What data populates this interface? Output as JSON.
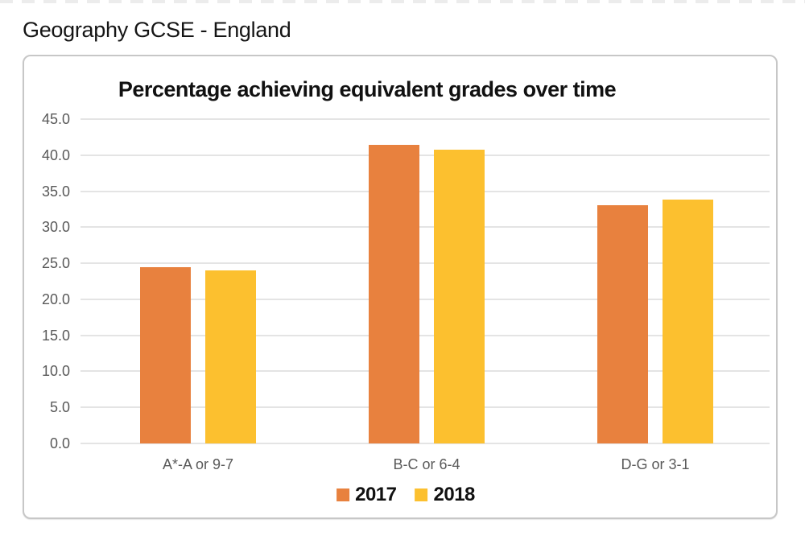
{
  "page": {
    "title": "Geography GCSE - England"
  },
  "chart_data": {
    "type": "bar",
    "title": "Percentage achieving equivalent grades over time",
    "categories": [
      "A*-A or 9-7",
      "B-C or 6-4",
      "D-G or 3-1"
    ],
    "series": [
      {
        "name": "2017",
        "color": "#E8813E",
        "values": [
          24.4,
          41.4,
          33.0
        ]
      },
      {
        "name": "2018",
        "color": "#FCC02F",
        "values": [
          24.0,
          40.8,
          33.8
        ]
      }
    ],
    "xlabel": "",
    "ylabel": "",
    "ylim": [
      0,
      45
    ],
    "ytick_step": 5,
    "ytick_labels": [
      "0.0",
      "5.0",
      "10.0",
      "15.0",
      "20.0",
      "25.0",
      "30.0",
      "35.0",
      "40.0",
      "45.0"
    ],
    "grid": true,
    "legend_position": "bottom",
    "colors": {
      "grid": "#E4E4E4",
      "axis_text": "#595959",
      "title": "#111111",
      "panel_border": "#C7C7C7"
    }
  }
}
